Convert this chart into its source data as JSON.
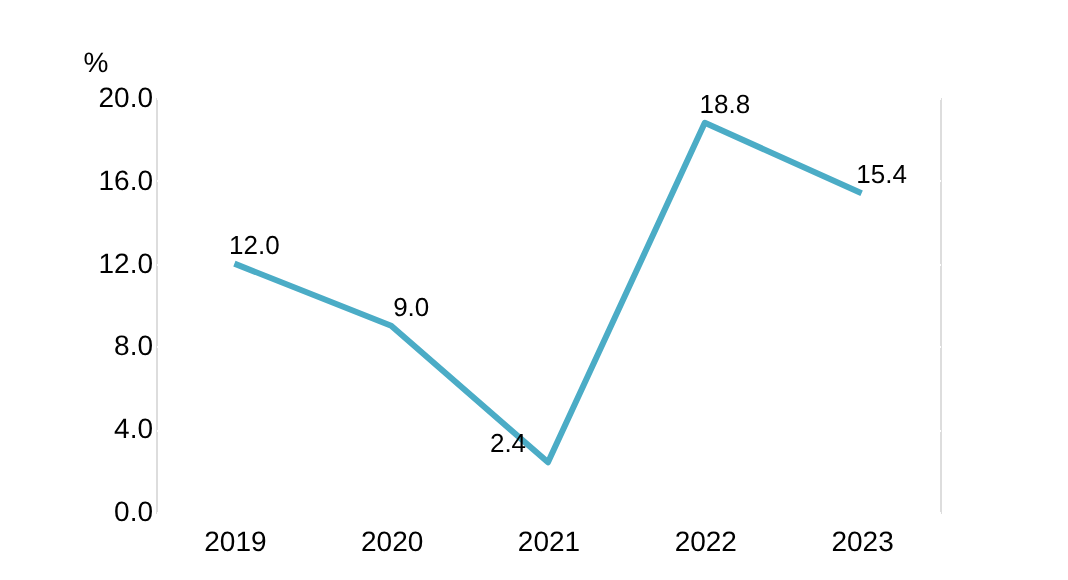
{
  "chart_data": {
    "type": "line",
    "ylabel": "%",
    "categories": [
      "2019",
      "2020",
      "2021",
      "2022",
      "2023"
    ],
    "series": [
      {
        "color": "#4bacc6",
        "values": [
          12.0,
          9.0,
          2.4,
          18.8,
          15.4
        ],
        "value_labels": [
          "12.0",
          "9.0",
          "2.4",
          "18.8",
          "15.4"
        ]
      }
    ],
    "ylim": [
      0,
      20
    ],
    "yticks": [
      {
        "value": 0,
        "label": "0.0"
      },
      {
        "value": 4,
        "label": "4.0"
      },
      {
        "value": 8,
        "label": "8.0"
      },
      {
        "value": 12,
        "label": "12.0"
      },
      {
        "value": 16,
        "label": "16.0"
      },
      {
        "value": 20,
        "label": "20.0"
      }
    ],
    "grid": "y",
    "marker": "none",
    "line_style": "solid"
  }
}
